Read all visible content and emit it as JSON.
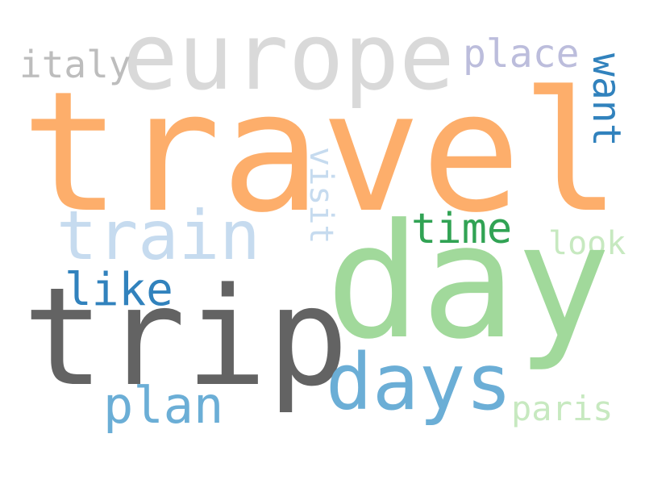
{
  "word_cloud": {
    "background_color": "#ffffff",
    "words": [
      {
        "id": "travel",
        "text": "travel",
        "color": "#fdae6b"
      },
      {
        "id": "day",
        "text": "day",
        "color": "#a1d99b"
      },
      {
        "id": "trip",
        "text": "trip",
        "color": "#636363"
      },
      {
        "id": "europe",
        "text": "europe",
        "color": "#d9d9d9"
      },
      {
        "id": "days",
        "text": "days",
        "color": "#6baed6"
      },
      {
        "id": "train",
        "text": "train",
        "color": "#c6dbef"
      },
      {
        "id": "plan",
        "text": "plan",
        "color": "#6baed6"
      },
      {
        "id": "like",
        "text": "like",
        "color": "#3182bd"
      },
      {
        "id": "time",
        "text": "time",
        "color": "#31a354"
      },
      {
        "id": "place",
        "text": "place",
        "color": "#bcbddc"
      },
      {
        "id": "want",
        "text": "want",
        "color": "#3182bd"
      },
      {
        "id": "italy",
        "text": "italy",
        "color": "#bdbdbd"
      },
      {
        "id": "visit",
        "text": "visit",
        "color": "#c6dbef"
      },
      {
        "id": "paris",
        "text": "paris",
        "color": "#c7e9c0"
      },
      {
        "id": "look",
        "text": "look",
        "color": "#c7e9c0"
      }
    ]
  }
}
